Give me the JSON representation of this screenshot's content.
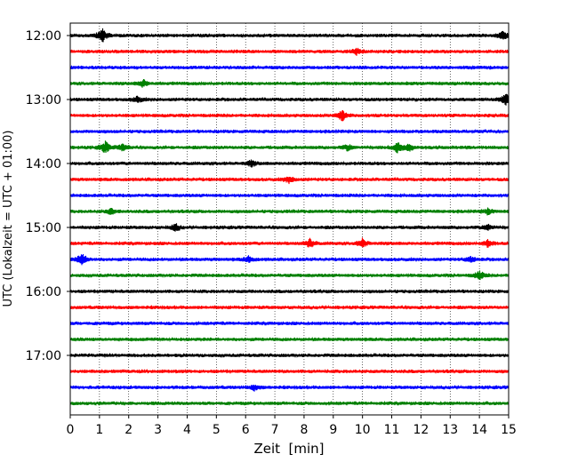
{
  "chart_data": {
    "type": "line",
    "title": "",
    "xlabel": "Zeit  [min]",
    "ylabel": "UTC (Lokalzeit = UTC + 01:00)",
    "xlim": [
      0,
      15
    ],
    "x_ticks": [
      "0",
      "1",
      "2",
      "3",
      "4",
      "5",
      "6",
      "7",
      "8",
      "9",
      "10",
      "11",
      "12",
      "13",
      "14",
      "15"
    ],
    "grid": "vertical dotted lines at each minute",
    "y_tick_labels": [
      "12:00",
      "13:00",
      "14:00",
      "15:00",
      "16:00",
      "17:00"
    ],
    "trace_interval_minutes": 15,
    "trace_color_cycle": [
      "#000000",
      "#ff0000",
      "#0000ff",
      "#008000"
    ],
    "series": [
      {
        "start": "12:00",
        "events": [
          {
            "t": 1.1,
            "amp": 1.0
          },
          {
            "t": 14.8,
            "amp": 0.6
          }
        ]
      },
      {
        "start": "12:15",
        "events": [
          {
            "t": 9.8,
            "amp": 0.4
          }
        ]
      },
      {
        "start": "12:30",
        "events": []
      },
      {
        "start": "12:45",
        "events": [
          {
            "t": 2.5,
            "amp": 0.5
          }
        ]
      },
      {
        "start": "13:00",
        "events": [
          {
            "t": 2.3,
            "amp": 0.4
          },
          {
            "t": 14.9,
            "amp": 0.8
          }
        ]
      },
      {
        "start": "13:15",
        "events": [
          {
            "t": 9.3,
            "amp": 0.8
          }
        ]
      },
      {
        "start": "13:30",
        "events": []
      },
      {
        "start": "13:45",
        "events": [
          {
            "t": 1.2,
            "amp": 0.8
          },
          {
            "t": 1.8,
            "amp": 0.5
          },
          {
            "t": 9.5,
            "amp": 0.4
          },
          {
            "t": 11.2,
            "amp": 0.7
          },
          {
            "t": 11.6,
            "amp": 0.5
          }
        ]
      },
      {
        "start": "14:00",
        "events": [
          {
            "t": 6.2,
            "amp": 0.4
          }
        ]
      },
      {
        "start": "14:15",
        "events": [
          {
            "t": 7.5,
            "amp": 0.5
          }
        ]
      },
      {
        "start": "14:30",
        "events": []
      },
      {
        "start": "14:45",
        "events": [
          {
            "t": 1.4,
            "amp": 0.4
          },
          {
            "t": 14.3,
            "amp": 0.4
          }
        ]
      },
      {
        "start": "15:00",
        "events": [
          {
            "t": 3.6,
            "amp": 0.5
          },
          {
            "t": 14.3,
            "amp": 0.4
          }
        ]
      },
      {
        "start": "15:15",
        "events": [
          {
            "t": 8.2,
            "amp": 0.6
          },
          {
            "t": 10.0,
            "amp": 0.6
          },
          {
            "t": 14.3,
            "amp": 0.5
          }
        ]
      },
      {
        "start": "15:30",
        "events": [
          {
            "t": 0.4,
            "amp": 0.9
          },
          {
            "t": 6.1,
            "amp": 0.4
          },
          {
            "t": 13.7,
            "amp": 0.4
          }
        ]
      },
      {
        "start": "15:45",
        "events": [
          {
            "t": 14.0,
            "amp": 0.6
          }
        ]
      },
      {
        "start": "16:00",
        "events": []
      },
      {
        "start": "16:15",
        "events": []
      },
      {
        "start": "16:30",
        "events": []
      },
      {
        "start": "16:45",
        "events": []
      },
      {
        "start": "17:00",
        "events": []
      },
      {
        "start": "17:15",
        "events": []
      },
      {
        "start": "17:30",
        "events": [
          {
            "t": 6.3,
            "amp": 0.4
          }
        ]
      },
      {
        "start": "17:45",
        "events": []
      }
    ]
  }
}
